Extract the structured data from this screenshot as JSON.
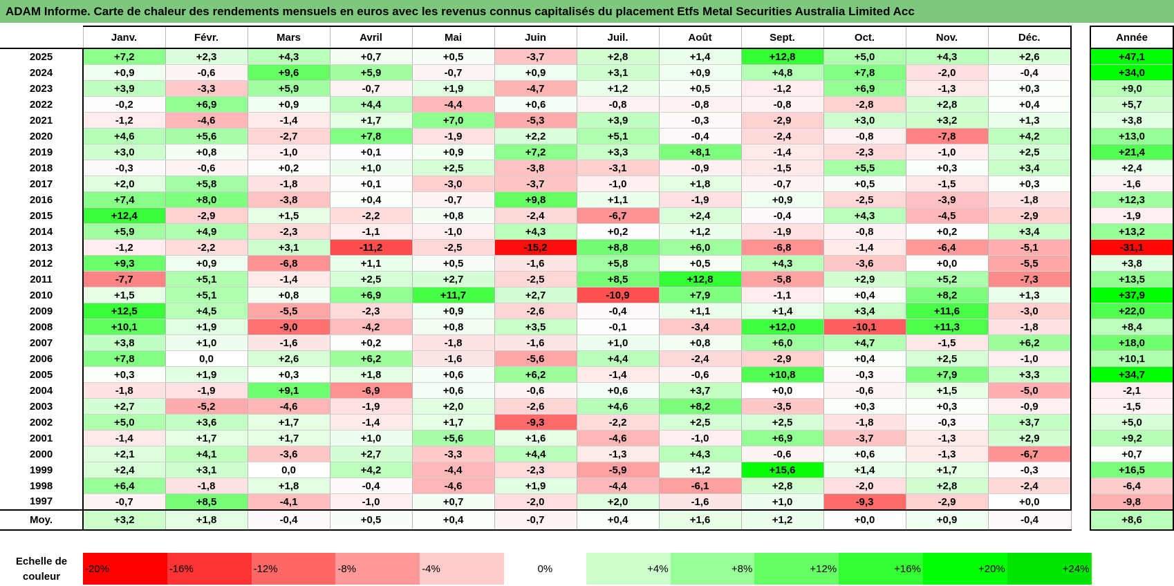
{
  "title": "ADAM Informe. Carte de chaleur des rendements mensuels en euros avec les revenus connus capitalisés du placement Etfs Metal Securities Australia Limited Acc",
  "chart_data": {
    "type": "heatmap",
    "months": [
      "Janv.",
      "Févr.",
      "Mars",
      "Avril",
      "Mai",
      "Juin",
      "Juil.",
      "Août",
      "Sept.",
      "Oct.",
      "Nov.",
      "Déc."
    ],
    "annual_header": "Année",
    "rows": [
      {
        "year": "2025",
        "values": [
          "+7,2",
          "+2,3",
          "+4,3",
          "+0,7",
          "+0,5",
          "-3,7",
          "+2,8",
          "+1,4",
          "+12,8",
          "+5,0",
          "+4,3",
          "+2,6"
        ],
        "annual": "+47,1"
      },
      {
        "year": "2024",
        "values": [
          "+0,9",
          "-0,6",
          "+9,6",
          "+5,9",
          "-0,7",
          "+0,9",
          "+3,1",
          "+0,9",
          "+4,8",
          "+7,8",
          "-2,0",
          "-0,4"
        ],
        "annual": "+34,0"
      },
      {
        "year": "2023",
        "values": [
          "+3,9",
          "-3,3",
          "+5,9",
          "-0,7",
          "+1,9",
          "-4,7",
          "+1,2",
          "+0,5",
          "-1,2",
          "+6,9",
          "-1,3",
          "+0,3"
        ],
        "annual": "+9,0"
      },
      {
        "year": "2022",
        "values": [
          "-0,2",
          "+6,9",
          "+0,9",
          "+4,4",
          "-4,4",
          "+0,6",
          "-0,8",
          "-0,8",
          "-0,8",
          "-2,8",
          "+2,8",
          "+0,4"
        ],
        "annual": "+5,7"
      },
      {
        "year": "2021",
        "values": [
          "-1,2",
          "-4,6",
          "-1,4",
          "+1,7",
          "+7,0",
          "-5,3",
          "+3,9",
          "-0,3",
          "-2,9",
          "+3,0",
          "+3,2",
          "+1,3"
        ],
        "annual": "+3,8"
      },
      {
        "year": "2020",
        "values": [
          "+4,6",
          "+5,6",
          "-2,7",
          "+7,8",
          "-1,9",
          "+2,2",
          "+5,1",
          "-0,4",
          "-2,4",
          "-0,8",
          "-7,8",
          "+4,2"
        ],
        "annual": "+13,0"
      },
      {
        "year": "2019",
        "values": [
          "+3,0",
          "+0,8",
          "-1,0",
          "+0,1",
          "+0,9",
          "+7,2",
          "+3,3",
          "+8,1",
          "-1,4",
          "-2,3",
          "-1,0",
          "+2,5"
        ],
        "annual": "+21,4"
      },
      {
        "year": "2018",
        "values": [
          "-0,3",
          "-0,6",
          "+0,2",
          "+1,0",
          "+2,5",
          "-3,8",
          "-3,1",
          "-0,9",
          "-1,5",
          "+5,5",
          "+0,3",
          "+3,4"
        ],
        "annual": "+2,4"
      },
      {
        "year": "2017",
        "values": [
          "+2,0",
          "+5,8",
          "-1,8",
          "+0,1",
          "-3,0",
          "-3,7",
          "-1,0",
          "+1,8",
          "-0,7",
          "+0,5",
          "-1,5",
          "+0,3"
        ],
        "annual": "-1,6"
      },
      {
        "year": "2016",
        "values": [
          "+7,4",
          "+8,0",
          "-3,8",
          "+0,4",
          "-0,7",
          "+9,8",
          "+1,1",
          "-1,9",
          "+0,9",
          "-2,5",
          "-3,9",
          "-1,8"
        ],
        "annual": "+12,3"
      },
      {
        "year": "2015",
        "values": [
          "+12,4",
          "-2,9",
          "+1,5",
          "-2,2",
          "+0,8",
          "-2,4",
          "-6,7",
          "+2,4",
          "-0,4",
          "+4,3",
          "-4,5",
          "-2,9"
        ],
        "annual": "-1,9"
      },
      {
        "year": "2014",
        "values": [
          "+5,9",
          "+4,9",
          "-2,3",
          "-1,1",
          "-1,0",
          "+4,3",
          "+0,2",
          "+1,2",
          "-1,9",
          "-0,8",
          "+0,2",
          "+3,4"
        ],
        "annual": "+13,2"
      },
      {
        "year": "2013",
        "values": [
          "-1,2",
          "-2,2",
          "+3,1",
          "-11,2",
          "-2,5",
          "-15,2",
          "+8,8",
          "+6,0",
          "-6,8",
          "-1,4",
          "-6,4",
          "-5,1"
        ],
        "annual": "-31,1"
      },
      {
        "year": "2012",
        "values": [
          "+9,3",
          "+0,9",
          "-6,8",
          "+1,1",
          "+0,5",
          "-1,6",
          "+5,8",
          "+0,5",
          "+4,3",
          "-3,6",
          "+0,0",
          "-5,5"
        ],
        "annual": "+3,8"
      },
      {
        "year": "2011",
        "values": [
          "-7,7",
          "+5,1",
          "-1,4",
          "+2,5",
          "+2,7",
          "-2,5",
          "+8,5",
          "+12,8",
          "-5,8",
          "+2,9",
          "+5,2",
          "-7,3"
        ],
        "annual": "+13,5"
      },
      {
        "year": "2010",
        "values": [
          "+1,5",
          "+5,1",
          "+0,8",
          "+6,9",
          "+11,7",
          "+2,7",
          "-10,9",
          "+7,9",
          "-1,1",
          "+0,4",
          "+8,2",
          "+1,3"
        ],
        "annual": "+37,9"
      },
      {
        "year": "2009",
        "values": [
          "+12,5",
          "+4,5",
          "-5,5",
          "-2,3",
          "+0,9",
          "-2,6",
          "-0,4",
          "+1,1",
          "+1,4",
          "+3,4",
          "+11,6",
          "-3,0"
        ],
        "annual": "+22,0"
      },
      {
        "year": "2008",
        "values": [
          "+10,1",
          "+1,9",
          "-9,0",
          "-4,2",
          "+0,8",
          "+3,5",
          "-0,1",
          "-3,4",
          "+12,0",
          "-10,1",
          "+11,3",
          "-1,8"
        ],
        "annual": "+8,4"
      },
      {
        "year": "2007",
        "values": [
          "+3,8",
          "+1,0",
          "-1,6",
          "+0,2",
          "-1,8",
          "-1,6",
          "+1,0",
          "+0,8",
          "+6,0",
          "+4,7",
          "-1,5",
          "+6,2"
        ],
        "annual": "+18,0"
      },
      {
        "year": "2006",
        "values": [
          "+7,8",
          "0,0",
          "+2,6",
          "+6,2",
          "-1,6",
          "-5,6",
          "+4,4",
          "-2,4",
          "-2,9",
          "+0,4",
          "+2,5",
          "-1,0"
        ],
        "annual": "+10,1"
      },
      {
        "year": "2005",
        "values": [
          "+0,3",
          "+1,9",
          "+0,3",
          "+1,8",
          "+0,6",
          "+6,2",
          "-1,4",
          "-0,6",
          "+10,8",
          "-0,3",
          "+7,9",
          "+3,3"
        ],
        "annual": "+34,7"
      },
      {
        "year": "2004",
        "values": [
          "-1,8",
          "-1,9",
          "+9,1",
          "-6,9",
          "+0,6",
          "-0,6",
          "+0,6",
          "+3,7",
          "+0,0",
          "-0,6",
          "+1,5",
          "-5,0"
        ],
        "annual": "-2,1"
      },
      {
        "year": "2003",
        "values": [
          "+2,7",
          "-5,2",
          "-4,6",
          "-1,9",
          "+2,0",
          "-2,6",
          "+4,6",
          "+8,2",
          "-3,5",
          "+0,3",
          "+0,3",
          "-0,9"
        ],
        "annual": "-1,5"
      },
      {
        "year": "2002",
        "values": [
          "+5,0",
          "+3,6",
          "+1,7",
          "-1,4",
          "+1,7",
          "-9,3",
          "-2,2",
          "+2,5",
          "+2,5",
          "-1,8",
          "-0,3",
          "+3,7"
        ],
        "annual": "+5,0"
      },
      {
        "year": "2001",
        "values": [
          "-1,4",
          "+1,7",
          "+1,7",
          "+1,0",
          "+5,6",
          "+1,6",
          "-4,6",
          "-1,0",
          "+6,9",
          "-3,7",
          "-1,3",
          "+2,9"
        ],
        "annual": "+9,2"
      },
      {
        "year": "2000",
        "values": [
          "+2,1",
          "+4,1",
          "-3,6",
          "+2,7",
          "-3,3",
          "+4,4",
          "-1,3",
          "+4,3",
          "-0,6",
          "+0,6",
          "-1,3",
          "-6,7"
        ],
        "annual": "+0,7"
      },
      {
        "year": "1999",
        "values": [
          "+2,4",
          "+3,1",
          "0,0",
          "+4,2",
          "-4,4",
          "-2,3",
          "-5,9",
          "+1,2",
          "+15,6",
          "+1,4",
          "+1,7",
          "-0,3"
        ],
        "annual": "+16,5"
      },
      {
        "year": "1998",
        "values": [
          "+6,4",
          "-1,8",
          "+1,8",
          "-0,4",
          "-4,6",
          "+1,9",
          "-4,4",
          "-6,1",
          "+2,8",
          "-2,0",
          "+2,8",
          "-2,4"
        ],
        "annual": "-6,4"
      },
      {
        "year": "1997",
        "values": [
          "-0,7",
          "+8,5",
          "-4,1",
          "-1,0",
          "+0,7",
          "-2,0",
          "+2,0",
          "-1,6",
          "+1,0",
          "-9,3",
          "-2,9",
          "+0,0"
        ],
        "annual": "-9,8"
      }
    ],
    "average": {
      "label": "Moy.",
      "values": [
        "+3,2",
        "+1,8",
        "-0,4",
        "+0,5",
        "+0,4",
        "-0,7",
        "+0,4",
        "+1,6",
        "+1,2",
        "+0,0",
        "+0,9",
        "-0,4"
      ],
      "annual": "+8,6"
    },
    "scale": {
      "label": "Echelle de couleur",
      "stops": [
        {
          "label": "-20%",
          "value": -20,
          "color": "#ff0000"
        },
        {
          "label": "-16%",
          "value": -16,
          "color": "#ff3333"
        },
        {
          "label": "-12%",
          "value": -12,
          "color": "#ff6666"
        },
        {
          "label": "-8%",
          "value": -8,
          "color": "#ff9999"
        },
        {
          "label": "-4%",
          "value": -4,
          "color": "#ffcccc"
        },
        {
          "label": "0%",
          "value": 0,
          "color": "#ffffff"
        },
        {
          "label": "+4%",
          "value": 4,
          "color": "#ccffcc"
        },
        {
          "label": "+8%",
          "value": 8,
          "color": "#99ff99"
        },
        {
          "label": "+12%",
          "value": 12,
          "color": "#66ff66"
        },
        {
          "label": "+16%",
          "value": 16,
          "color": "#33ff33"
        },
        {
          "label": "+20%",
          "value": 20,
          "color": "#00ff00"
        },
        {
          "label": "+24%",
          "value": 24,
          "color": "#00e600"
        }
      ]
    },
    "colors": {
      "title_bg": "#7dc87d",
      "negative_max": "#ff0000",
      "positive_max": "#00ff00",
      "neutral": "#ffffff"
    }
  }
}
